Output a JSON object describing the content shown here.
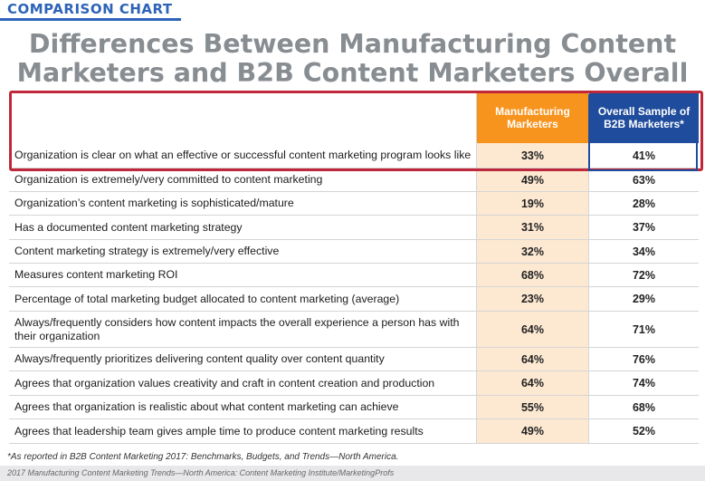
{
  "header": {
    "label": "COMPARISON CHART",
    "title_line1": "Differences Between Manufacturing Content",
    "title_line2": "Marketers and B2B Content Marketers Overall"
  },
  "colors": {
    "label_blue": "#2e63b8",
    "title_gray": "#888d92",
    "manufacturing_orange": "#f7941d",
    "manufacturing_tint": "#fde9d2",
    "b2b_navy": "#1f4c9c",
    "highlight_red": "#c0273a"
  },
  "chart_data": {
    "type": "table",
    "columns": [
      {
        "line1": "Manufacturing",
        "line2": "Marketers"
      },
      {
        "line1": "Overall Sample of",
        "line2": "B2B Marketers*"
      }
    ],
    "rows": [
      {
        "label": "Organization is clear on what an effective or successful content marketing program looks like",
        "manufacturing": "33%",
        "b2b": "41%"
      },
      {
        "label": "Organization is extremely/very committed to content marketing",
        "manufacturing": "49%",
        "b2b": "63%"
      },
      {
        "label": "Organization’s content marketing is sophisticated/mature",
        "manufacturing": "19%",
        "b2b": "28%"
      },
      {
        "label": "Has a documented content marketing strategy",
        "manufacturing": "31%",
        "b2b": "37%"
      },
      {
        "label": "Content marketing strategy is extremely/very effective",
        "manufacturing": "32%",
        "b2b": "34%"
      },
      {
        "label": "Measures content marketing ROI",
        "manufacturing": "68%",
        "b2b": "72%"
      },
      {
        "label": "Percentage of total marketing budget allocated to content marketing (average)",
        "manufacturing": "23%",
        "b2b": "29%"
      },
      {
        "label": "Always/frequently considers how content impacts the overall experience a person has with their organization",
        "manufacturing": "64%",
        "b2b": "71%"
      },
      {
        "label": "Always/frequently prioritizes delivering content quality over content quantity",
        "manufacturing": "64%",
        "b2b": "76%"
      },
      {
        "label": "Agrees that organization values creativity and craft in content creation and production",
        "manufacturing": "64%",
        "b2b": "74%"
      },
      {
        "label": "Agrees that organization is realistic about what content marketing can achieve",
        "manufacturing": "55%",
        "b2b": "68%"
      },
      {
        "label": "Agrees that leadership team gives ample time to produce content marketing results",
        "manufacturing": "49%",
        "b2b": "52%"
      }
    ]
  },
  "footnote": "*As reported in B2B Content Marketing 2017: Benchmarks, Budgets, and Trends—North America.",
  "source": "2017 Manufacturing Content Marketing Trends—North America: Content Marketing Institute/MarketingProfs"
}
